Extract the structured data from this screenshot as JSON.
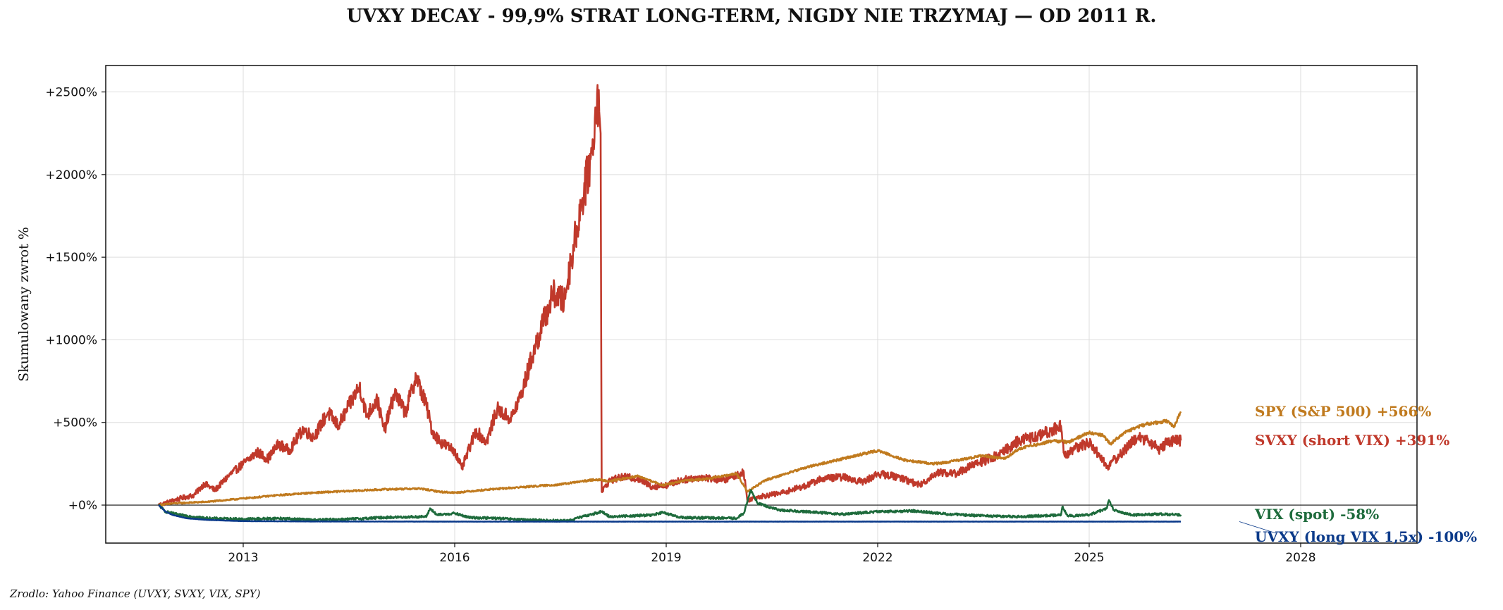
{
  "chart_data": {
    "type": "line",
    "title": "UVXY DECAY - 99,9% STRAT LONG-TERM, NIGDY NIE TRZYMAJ — OD 2011 R.",
    "xlabel": "",
    "ylabel": "Skumulowany zwrot %",
    "source": "Zrodlo: Yahoo Finance (UVXY, SVXY, VIX, SPY)",
    "x_ticks": [
      2013,
      2016,
      2019,
      2022,
      2025,
      2028
    ],
    "y_ticks": [
      0,
      500,
      1000,
      1500,
      2000,
      2500
    ],
    "y_tick_labels": [
      "+0%",
      "+500%",
      "+1000%",
      "+1500%",
      "+2000%",
      "+2500%"
    ],
    "xlim": [
      2011.05,
      2029.65
    ],
    "ylim": [
      -230,
      2660
    ],
    "grid": true,
    "zero_line": true,
    "series": [
      {
        "name": "SVXY (short VIX)",
        "label": "SVXY (short VIX)  +391%",
        "final": 391,
        "color": "#c0392b",
        "points": [
          [
            2011.8,
            0
          ],
          [
            2011.95,
            20
          ],
          [
            2012.1,
            40
          ],
          [
            2012.3,
            60
          ],
          [
            2012.45,
            130
          ],
          [
            2012.6,
            90
          ],
          [
            2012.8,
            180
          ],
          [
            2013.0,
            250
          ],
          [
            2013.2,
            320
          ],
          [
            2013.35,
            280
          ],
          [
            2013.5,
            370
          ],
          [
            2013.65,
            330
          ],
          [
            2013.85,
            460
          ],
          [
            2014.0,
            410
          ],
          [
            2014.2,
            560
          ],
          [
            2014.35,
            480
          ],
          [
            2014.5,
            600
          ],
          [
            2014.65,
            720
          ],
          [
            2014.75,
            540
          ],
          [
            2014.9,
            640
          ],
          [
            2015.0,
            450
          ],
          [
            2015.15,
            680
          ],
          [
            2015.3,
            560
          ],
          [
            2015.45,
            780
          ],
          [
            2015.6,
            600
          ],
          [
            2015.68,
            450
          ],
          [
            2015.8,
            380
          ],
          [
            2016.0,
            330
          ],
          [
            2016.1,
            220
          ],
          [
            2016.3,
            450
          ],
          [
            2016.45,
            380
          ],
          [
            2016.6,
            580
          ],
          [
            2016.8,
            520
          ],
          [
            2016.95,
            680
          ],
          [
            2017.1,
            900
          ],
          [
            2017.25,
            1100
          ],
          [
            2017.4,
            1280
          ],
          [
            2017.55,
            1230
          ],
          [
            2017.65,
            1480
          ],
          [
            2017.8,
            1830
          ],
          [
            2017.95,
            2130
          ],
          [
            2018.02,
            2490
          ],
          [
            2018.05,
            2380
          ],
          [
            2018.07,
            2250
          ],
          [
            2018.085,
            80
          ],
          [
            2018.2,
            150
          ],
          [
            2018.4,
            170
          ],
          [
            2018.6,
            160
          ],
          [
            2018.8,
            110
          ],
          [
            2019.0,
            120
          ],
          [
            2019.2,
            150
          ],
          [
            2019.5,
            170
          ],
          [
            2019.8,
            150
          ],
          [
            2020.0,
            180
          ],
          [
            2020.1,
            200
          ],
          [
            2020.15,
            30
          ],
          [
            2020.3,
            50
          ],
          [
            2020.6,
            70
          ],
          [
            2021.0,
            120
          ],
          [
            2021.2,
            160
          ],
          [
            2021.5,
            170
          ],
          [
            2021.8,
            140
          ],
          [
            2022.0,
            190
          ],
          [
            2022.3,
            170
          ],
          [
            2022.6,
            120
          ],
          [
            2022.85,
            200
          ],
          [
            2023.1,
            190
          ],
          [
            2023.4,
            250
          ],
          [
            2023.7,
            300
          ],
          [
            2024.0,
            390
          ],
          [
            2024.3,
            420
          ],
          [
            2024.6,
            480
          ],
          [
            2024.65,
            300
          ],
          [
            2024.8,
            340
          ],
          [
            2025.0,
            380
          ],
          [
            2025.15,
            300
          ],
          [
            2025.25,
            230
          ],
          [
            2025.4,
            290
          ],
          [
            2025.7,
            420
          ],
          [
            2025.85,
            380
          ],
          [
            2026.0,
            340
          ],
          [
            2026.1,
            380
          ],
          [
            2026.3,
            391
          ]
        ]
      },
      {
        "name": "SPY (S&P 500)",
        "label": "SPY (S&P 500)  +566%",
        "final": 566,
        "color": "#c07a1e",
        "points": [
          [
            2011.8,
            0
          ],
          [
            2012.0,
            10
          ],
          [
            2012.5,
            20
          ],
          [
            2013.0,
            40
          ],
          [
            2013.5,
            60
          ],
          [
            2014.0,
            75
          ],
          [
            2014.5,
            85
          ],
          [
            2015.0,
            95
          ],
          [
            2015.5,
            100
          ],
          [
            2015.8,
            80
          ],
          [
            2016.0,
            75
          ],
          [
            2016.5,
            95
          ],
          [
            2017.0,
            110
          ],
          [
            2017.5,
            125
          ],
          [
            2018.0,
            155
          ],
          [
            2018.2,
            145
          ],
          [
            2018.6,
            175
          ],
          [
            2018.95,
            120
          ],
          [
            2019.3,
            150
          ],
          [
            2019.6,
            160
          ],
          [
            2020.0,
            190
          ],
          [
            2020.15,
            80
          ],
          [
            2020.4,
            150
          ],
          [
            2020.7,
            190
          ],
          [
            2021.0,
            230
          ],
          [
            2021.4,
            270
          ],
          [
            2021.8,
            310
          ],
          [
            2022.0,
            330
          ],
          [
            2022.4,
            270
          ],
          [
            2022.8,
            250
          ],
          [
            2023.0,
            260
          ],
          [
            2023.5,
            300
          ],
          [
            2023.8,
            280
          ],
          [
            2024.0,
            340
          ],
          [
            2024.5,
            390
          ],
          [
            2024.7,
            380
          ],
          [
            2025.0,
            440
          ],
          [
            2025.2,
            420
          ],
          [
            2025.3,
            370
          ],
          [
            2025.5,
            440
          ],
          [
            2025.8,
            490
          ],
          [
            2026.1,
            510
          ],
          [
            2026.2,
            470
          ],
          [
            2026.3,
            566
          ]
        ]
      },
      {
        "name": "VIX (spot)",
        "label": "VIX (spot)  -58%",
        "final": -58,
        "color": "#1e6b3c",
        "points": [
          [
            2011.8,
            0
          ],
          [
            2011.9,
            -40
          ],
          [
            2012.1,
            -60
          ],
          [
            2012.5,
            -80
          ],
          [
            2013.0,
            -85
          ],
          [
            2013.5,
            -80
          ],
          [
            2014.0,
            -90
          ],
          [
            2014.5,
            -85
          ],
          [
            2015.0,
            -75
          ],
          [
            2015.6,
            -70
          ],
          [
            2015.65,
            -20
          ],
          [
            2015.75,
            -60
          ],
          [
            2016.0,
            -50
          ],
          [
            2016.2,
            -75
          ],
          [
            2016.6,
            -80
          ],
          [
            2017.0,
            -90
          ],
          [
            2017.6,
            -95
          ],
          [
            2018.08,
            -40
          ],
          [
            2018.2,
            -70
          ],
          [
            2018.8,
            -60
          ],
          [
            2018.95,
            -45
          ],
          [
            2019.2,
            -75
          ],
          [
            2020.0,
            -80
          ],
          [
            2020.1,
            -50
          ],
          [
            2020.2,
            90
          ],
          [
            2020.3,
            10
          ],
          [
            2020.6,
            -30
          ],
          [
            2021.0,
            -40
          ],
          [
            2021.5,
            -55
          ],
          [
            2022.0,
            -40
          ],
          [
            2022.5,
            -35
          ],
          [
            2023.0,
            -55
          ],
          [
            2023.5,
            -65
          ],
          [
            2024.0,
            -70
          ],
          [
            2024.6,
            -60
          ],
          [
            2024.62,
            -10
          ],
          [
            2024.7,
            -65
          ],
          [
            2025.0,
            -60
          ],
          [
            2025.25,
            -20
          ],
          [
            2025.28,
            30
          ],
          [
            2025.35,
            -30
          ],
          [
            2025.6,
            -60
          ],
          [
            2026.0,
            -55
          ],
          [
            2026.3,
            -58
          ]
        ]
      },
      {
        "name": "UVXY (long VIX 1,5x)",
        "label": "UVXY (long VIX 1,5x)  -100%",
        "final": -100,
        "color": "#0b3a8a",
        "points": [
          [
            2011.8,
            0
          ],
          [
            2011.9,
            -40
          ],
          [
            2012.0,
            -60
          ],
          [
            2012.2,
            -80
          ],
          [
            2012.5,
            -90
          ],
          [
            2013.0,
            -97
          ],
          [
            2014.0,
            -99
          ],
          [
            2016.0,
            -100
          ],
          [
            2020.0,
            -100
          ],
          [
            2026.3,
            -100
          ]
        ]
      }
    ]
  }
}
